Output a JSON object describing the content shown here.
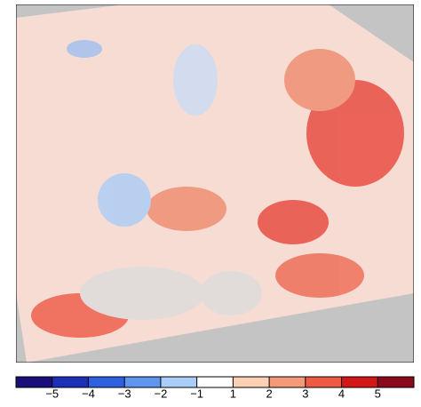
{
  "colorbar": {
    "ticks": [
      {
        "value": -5,
        "label": "−5"
      },
      {
        "value": -4,
        "label": "−4"
      },
      {
        "value": -3,
        "label": "−3"
      },
      {
        "value": -2,
        "label": "−2"
      },
      {
        "value": -1,
        "label": "−1"
      },
      1,
      2,
      3,
      4,
      5
    ],
    "colors": [
      "#1a0f7a",
      "#1c2fb8",
      "#2e5fe0",
      "#5e95ee",
      "#a9cdf6",
      "#ffffff",
      "#fbd0b4",
      "#f59a78",
      "#ee5a44",
      "#d41818",
      "#8a0a1c"
    ]
  }
}
